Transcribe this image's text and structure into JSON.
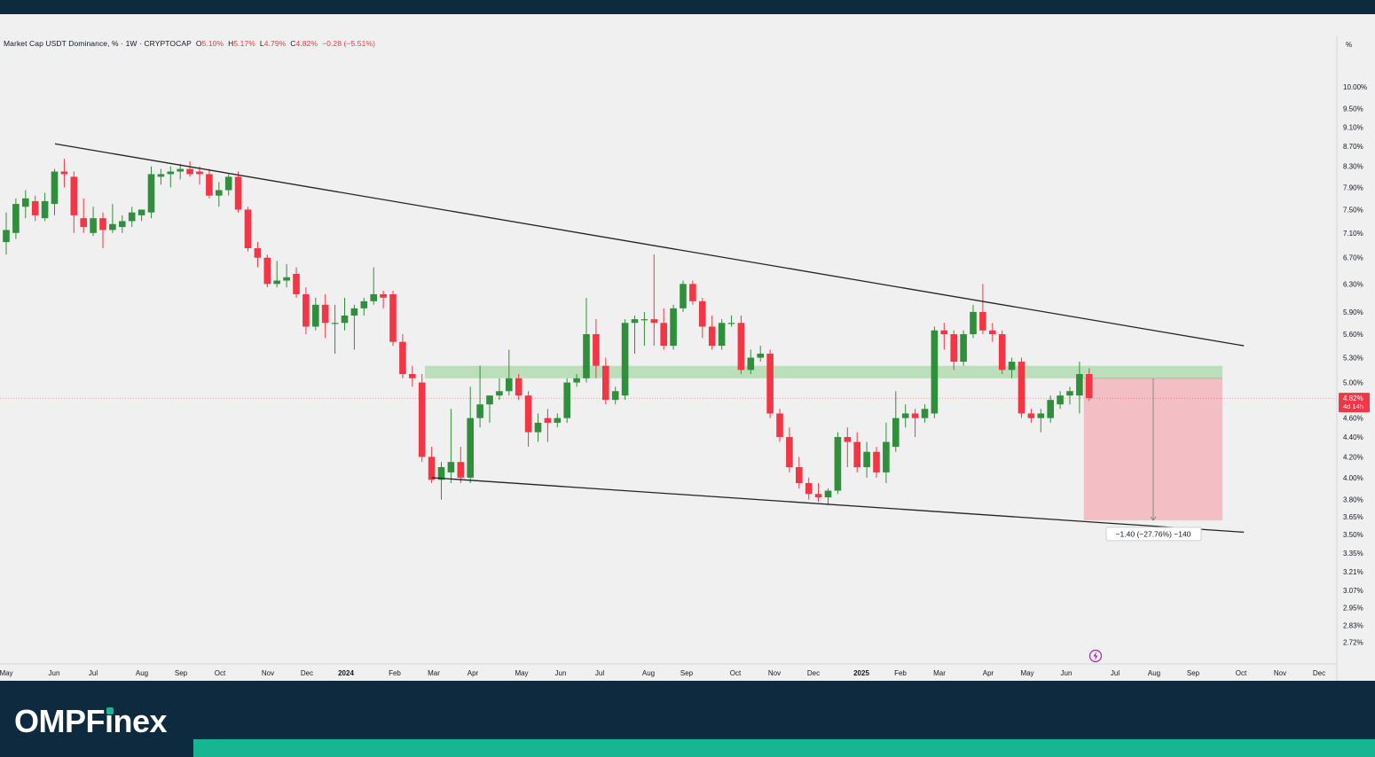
{
  "header": {
    "symbol": "Market Cap USDT Dominance, % · 1W · CRYPTOCAP",
    "open_label": "O",
    "open": "5.10%",
    "high_label": "H",
    "high": "5.17%",
    "low_label": "L",
    "low": "4.79%",
    "close_label": "C",
    "close": "4.82%",
    "change": "−0.28 (−5.51%)"
  },
  "price_axis": {
    "unit_label": "%",
    "ticks": [
      "10.00%",
      "9.50%",
      "9.10%",
      "8.70%",
      "8.30%",
      "7.90%",
      "7.50%",
      "7.10%",
      "6.70%",
      "6.30%",
      "5.90%",
      "5.60%",
      "5.30%",
      "5.00%",
      "4.60%",
      "4.40%",
      "4.20%",
      "4.00%",
      "3.80%",
      "3.65%",
      "3.50%",
      "3.35%",
      "3.21%",
      "3.07%",
      "2.95%",
      "2.83%",
      "2.72%"
    ],
    "current_price": "4.82%",
    "countdown": "4d 14h"
  },
  "time_axis": {
    "labels": [
      "May",
      "Jun",
      "Jul",
      "Aug",
      "Sep",
      "Oct",
      "Nov",
      "Dec",
      "2024",
      "Feb",
      "Mar",
      "Apr",
      "May",
      "Jun",
      "Jul",
      "Aug",
      "Sep",
      "Oct",
      "Nov",
      "Dec",
      "2025",
      "Feb",
      "Mar",
      "Apr",
      "May",
      "Jun",
      "Jul",
      "Aug",
      "Sep",
      "Oct",
      "Nov",
      "Dec"
    ]
  },
  "measure_label": "−1.40 (−27.76%) −140",
  "colors": {
    "up": "#2f8f3a",
    "down": "#f23645",
    "zone": "#b5dbb5",
    "target": "#f4b9bf",
    "trend": "#222222"
  },
  "logo": {
    "prefix": "OMPF",
    "i": "ı",
    "suffix": "nex"
  },
  "chart_data": {
    "type": "candlestick",
    "title": "Market Cap USDT Dominance, % · 1W · CRYPTOCAP",
    "ylabel": "%",
    "y_scale": "log",
    "ylim": [
      2.65,
      10.6
    ],
    "x_range": [
      "2023-05",
      "2025-12"
    ],
    "last_candle": {
      "open": 5.1,
      "high": 5.17,
      "low": 4.79,
      "close": 4.82
    },
    "candles": [
      {
        "o": 6.95,
        "h": 7.45,
        "l": 6.75,
        "c": 7.15
      },
      {
        "o": 7.1,
        "h": 7.7,
        "l": 7.0,
        "c": 7.6
      },
      {
        "o": 7.55,
        "h": 7.85,
        "l": 7.35,
        "c": 7.7
      },
      {
        "o": 7.65,
        "h": 7.75,
        "l": 7.3,
        "c": 7.4
      },
      {
        "o": 7.35,
        "h": 7.8,
        "l": 7.3,
        "c": 7.65
      },
      {
        "o": 7.6,
        "h": 8.25,
        "l": 7.4,
        "c": 8.2
      },
      {
        "o": 8.2,
        "h": 8.45,
        "l": 7.9,
        "c": 8.15
      },
      {
        "o": 8.1,
        "h": 8.2,
        "l": 7.1,
        "c": 7.4
      },
      {
        "o": 7.35,
        "h": 7.7,
        "l": 7.1,
        "c": 7.2
      },
      {
        "o": 7.1,
        "h": 7.55,
        "l": 7.05,
        "c": 7.35
      },
      {
        "o": 7.35,
        "h": 7.45,
        "l": 6.85,
        "c": 7.15
      },
      {
        "o": 7.15,
        "h": 7.6,
        "l": 7.1,
        "c": 7.25
      },
      {
        "o": 7.2,
        "h": 7.4,
        "l": 7.1,
        "c": 7.3
      },
      {
        "o": 7.3,
        "h": 7.55,
        "l": 7.2,
        "c": 7.45
      },
      {
        "o": 7.4,
        "h": 7.5,
        "l": 7.3,
        "c": 7.5
      },
      {
        "o": 7.45,
        "h": 8.3,
        "l": 7.35,
        "c": 8.15
      },
      {
        "o": 8.1,
        "h": 8.25,
        "l": 7.95,
        "c": 8.15
      },
      {
        "o": 8.15,
        "h": 8.3,
        "l": 7.9,
        "c": 8.2
      },
      {
        "o": 8.2,
        "h": 8.35,
        "l": 8.05,
        "c": 8.25
      },
      {
        "o": 8.25,
        "h": 8.4,
        "l": 8.1,
        "c": 8.15
      },
      {
        "o": 8.2,
        "h": 8.3,
        "l": 7.95,
        "c": 8.15
      },
      {
        "o": 8.15,
        "h": 8.25,
        "l": 7.7,
        "c": 7.75
      },
      {
        "o": 7.75,
        "h": 8.0,
        "l": 7.55,
        "c": 7.85
      },
      {
        "o": 7.85,
        "h": 8.15,
        "l": 7.75,
        "c": 8.1
      },
      {
        "o": 8.1,
        "h": 8.2,
        "l": 7.45,
        "c": 7.5
      },
      {
        "o": 7.5,
        "h": 7.55,
        "l": 6.8,
        "c": 6.85
      },
      {
        "o": 6.85,
        "h": 6.95,
        "l": 6.55,
        "c": 6.7
      },
      {
        "o": 6.7,
        "h": 6.75,
        "l": 6.25,
        "c": 6.3
      },
      {
        "o": 6.3,
        "h": 6.65,
        "l": 6.25,
        "c": 6.35
      },
      {
        "o": 6.35,
        "h": 6.6,
        "l": 6.25,
        "c": 6.4
      },
      {
        "o": 6.45,
        "h": 6.55,
        "l": 6.1,
        "c": 6.15
      },
      {
        "o": 6.15,
        "h": 6.25,
        "l": 5.6,
        "c": 5.7
      },
      {
        "o": 5.7,
        "h": 6.1,
        "l": 5.65,
        "c": 6.0
      },
      {
        "o": 6.0,
        "h": 6.15,
        "l": 5.55,
        "c": 5.75
      },
      {
        "o": 5.75,
        "h": 6.0,
        "l": 5.35,
        "c": 5.75
      },
      {
        "o": 5.75,
        "h": 6.1,
        "l": 5.65,
        "c": 5.85
      },
      {
        "o": 5.85,
        "h": 6.0,
        "l": 5.4,
        "c": 5.95
      },
      {
        "o": 5.95,
        "h": 6.1,
        "l": 5.85,
        "c": 6.05
      },
      {
        "o": 6.05,
        "h": 6.55,
        "l": 6.0,
        "c": 6.15
      },
      {
        "o": 6.15,
        "h": 6.2,
        "l": 5.95,
        "c": 6.1
      },
      {
        "o": 6.15,
        "h": 6.2,
        "l": 5.45,
        "c": 5.5
      },
      {
        "o": 5.5,
        "h": 5.6,
        "l": 5.05,
        "c": 5.1
      },
      {
        "o": 5.1,
        "h": 5.2,
        "l": 4.95,
        "c": 5.05
      },
      {
        "o": 5.0,
        "h": 5.1,
        "l": 4.15,
        "c": 4.2
      },
      {
        "o": 4.2,
        "h": 4.3,
        "l": 3.95,
        "c": 3.98
      },
      {
        "o": 3.98,
        "h": 4.15,
        "l": 3.8,
        "c": 4.1
      },
      {
        "o": 4.05,
        "h": 4.7,
        "l": 3.95,
        "c": 4.15
      },
      {
        "o": 4.15,
        "h": 4.3,
        "l": 3.95,
        "c": 4.0
      },
      {
        "o": 4.0,
        "h": 4.95,
        "l": 3.95,
        "c": 4.6
      },
      {
        "o": 4.6,
        "h": 5.2,
        "l": 4.5,
        "c": 4.75
      },
      {
        "o": 4.75,
        "h": 4.85,
        "l": 4.55,
        "c": 4.85
      },
      {
        "o": 4.85,
        "h": 5.05,
        "l": 4.8,
        "c": 4.9
      },
      {
        "o": 4.9,
        "h": 5.4,
        "l": 4.85,
        "c": 5.05
      },
      {
        "o": 5.05,
        "h": 5.1,
        "l": 4.8,
        "c": 4.85
      },
      {
        "o": 4.85,
        "h": 4.9,
        "l": 4.3,
        "c": 4.45
      },
      {
        "o": 4.45,
        "h": 4.65,
        "l": 4.35,
        "c": 4.55
      },
      {
        "o": 4.6,
        "h": 4.7,
        "l": 4.35,
        "c": 4.55
      },
      {
        "o": 4.55,
        "h": 4.65,
        "l": 4.5,
        "c": 4.6
      },
      {
        "o": 4.6,
        "h": 5.05,
        "l": 4.55,
        "c": 5.0
      },
      {
        "o": 5.0,
        "h": 5.1,
        "l": 4.95,
        "c": 5.05
      },
      {
        "o": 5.05,
        "h": 6.1,
        "l": 5.0,
        "c": 5.6
      },
      {
        "o": 5.6,
        "h": 5.8,
        "l": 5.05,
        "c": 5.2
      },
      {
        "o": 5.2,
        "h": 5.3,
        "l": 4.75,
        "c": 4.8
      },
      {
        "o": 4.8,
        "h": 4.95,
        "l": 4.75,
        "c": 4.9
      },
      {
        "o": 4.85,
        "h": 5.8,
        "l": 4.8,
        "c": 5.75
      },
      {
        "o": 5.75,
        "h": 5.85,
        "l": 5.35,
        "c": 5.8
      },
      {
        "o": 5.8,
        "h": 5.9,
        "l": 5.45,
        "c": 5.8
      },
      {
        "o": 5.8,
        "h": 6.75,
        "l": 5.45,
        "c": 5.75
      },
      {
        "o": 5.75,
        "h": 5.95,
        "l": 5.4,
        "c": 5.45
      },
      {
        "o": 5.45,
        "h": 6.0,
        "l": 5.4,
        "c": 5.95
      },
      {
        "o": 5.95,
        "h": 6.35,
        "l": 5.9,
        "c": 6.3
      },
      {
        "o": 6.3,
        "h": 6.35,
        "l": 6.0,
        "c": 6.05
      },
      {
        "o": 6.05,
        "h": 6.1,
        "l": 5.55,
        "c": 5.7
      },
      {
        "o": 5.7,
        "h": 5.85,
        "l": 5.4,
        "c": 5.45
      },
      {
        "o": 5.45,
        "h": 5.8,
        "l": 5.4,
        "c": 5.75
      },
      {
        "o": 5.75,
        "h": 5.85,
        "l": 5.7,
        "c": 5.75
      },
      {
        "o": 5.75,
        "h": 5.85,
        "l": 5.1,
        "c": 5.15
      },
      {
        "o": 5.15,
        "h": 5.4,
        "l": 5.1,
        "c": 5.3
      },
      {
        "o": 5.3,
        "h": 5.45,
        "l": 5.25,
        "c": 5.35
      },
      {
        "o": 5.35,
        "h": 5.4,
        "l": 4.6,
        "c": 4.65
      },
      {
        "o": 4.65,
        "h": 4.7,
        "l": 4.35,
        "c": 4.4
      },
      {
        "o": 4.4,
        "h": 4.5,
        "l": 4.05,
        "c": 4.1
      },
      {
        "o": 4.1,
        "h": 4.2,
        "l": 3.9,
        "c": 3.95
      },
      {
        "o": 3.95,
        "h": 4.0,
        "l": 3.8,
        "c": 3.85
      },
      {
        "o": 3.85,
        "h": 3.95,
        "l": 3.78,
        "c": 3.82
      },
      {
        "o": 3.82,
        "h": 3.9,
        "l": 3.75,
        "c": 3.88
      },
      {
        "o": 3.88,
        "h": 4.45,
        "l": 3.85,
        "c": 4.4
      },
      {
        "o": 4.4,
        "h": 4.5,
        "l": 4.1,
        "c": 4.35
      },
      {
        "o": 4.35,
        "h": 4.45,
        "l": 4.05,
        "c": 4.1
      },
      {
        "o": 4.1,
        "h": 4.35,
        "l": 4.0,
        "c": 4.25
      },
      {
        "o": 4.25,
        "h": 4.3,
        "l": 4.0,
        "c": 4.05
      },
      {
        "o": 4.05,
        "h": 4.55,
        "l": 3.95,
        "c": 4.35
      },
      {
        "o": 4.3,
        "h": 4.9,
        "l": 4.25,
        "c": 4.6
      },
      {
        "o": 4.6,
        "h": 4.75,
        "l": 4.5,
        "c": 4.65
      },
      {
        "o": 4.65,
        "h": 4.7,
        "l": 4.4,
        "c": 4.6
      },
      {
        "o": 4.6,
        "h": 4.75,
        "l": 4.55,
        "c": 4.7
      },
      {
        "o": 4.65,
        "h": 5.7,
        "l": 4.6,
        "c": 5.65
      },
      {
        "o": 5.65,
        "h": 5.75,
        "l": 5.4,
        "c": 5.6
      },
      {
        "o": 5.6,
        "h": 5.65,
        "l": 5.15,
        "c": 5.25
      },
      {
        "o": 5.25,
        "h": 5.65,
        "l": 5.2,
        "c": 5.6
      },
      {
        "o": 5.6,
        "h": 6.0,
        "l": 5.55,
        "c": 5.9
      },
      {
        "o": 5.9,
        "h": 6.3,
        "l": 5.6,
        "c": 5.65
      },
      {
        "o": 5.65,
        "h": 5.75,
        "l": 5.5,
        "c": 5.6
      },
      {
        "o": 5.6,
        "h": 5.65,
        "l": 5.1,
        "c": 5.15
      },
      {
        "o": 5.15,
        "h": 5.3,
        "l": 5.05,
        "c": 5.25
      },
      {
        "o": 5.25,
        "h": 5.3,
        "l": 4.6,
        "c": 4.65
      },
      {
        "o": 4.65,
        "h": 4.7,
        "l": 4.55,
        "c": 4.6
      },
      {
        "o": 4.6,
        "h": 4.7,
        "l": 4.45,
        "c": 4.65
      },
      {
        "o": 4.6,
        "h": 4.85,
        "l": 4.55,
        "c": 4.8
      },
      {
        "o": 4.75,
        "h": 4.9,
        "l": 4.7,
        "c": 4.85
      },
      {
        "o": 4.85,
        "h": 4.95,
        "l": 4.75,
        "c": 4.9
      },
      {
        "o": 4.85,
        "h": 5.25,
        "l": 4.65,
        "c": 5.1
      },
      {
        "o": 5.1,
        "h": 5.17,
        "l": 4.79,
        "c": 4.82
      }
    ],
    "annotations": {
      "descending_trendline": [
        [
          0,
          8.75
        ],
        [
          128,
          5.45
        ]
      ],
      "support_trendline": [
        [
          44,
          4.0
        ],
        [
          128,
          3.52
        ]
      ],
      "resistance_zone": [
        5.05,
        5.2
      ],
      "target_box": {
        "top": 5.05,
        "bottom": 3.62
      },
      "measure": "−1.40 (−27.76%) −140"
    }
  }
}
